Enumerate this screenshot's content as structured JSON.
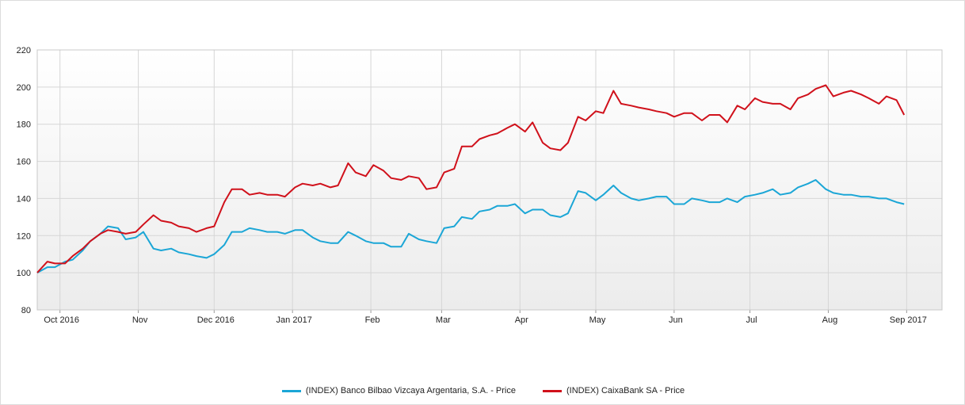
{
  "chart_data": {
    "type": "line",
    "title": "",
    "xlabel": "",
    "ylabel": "",
    "ylim": [
      80,
      220
    ],
    "y_ticks": [
      80,
      100,
      120,
      140,
      160,
      180,
      200,
      220
    ],
    "x_tick_labels": [
      "Oct 2016",
      "Nov",
      "Dec 2016",
      "Jan 2017",
      "Feb",
      "Mar",
      "Apr",
      "May",
      "Jun",
      "Jul",
      "Aug",
      "Sep 2017"
    ],
    "x_tick_dates": [
      "2016-10-01",
      "2016-11-01",
      "2016-12-01",
      "2017-01-01",
      "2017-02-01",
      "2017-03-01",
      "2017-04-01",
      "2017-05-01",
      "2017-06-01",
      "2017-07-01",
      "2017-08-01",
      "2017-09-01"
    ],
    "x_range": [
      "2016-09-22",
      "2017-09-15"
    ],
    "grid": true,
    "legend_position": "bottom",
    "series": [
      {
        "name": "(INDEX) Banco Bilbao Vizcaya Argentaria, S.A. - Price",
        "color": "#1ba6d6",
        "points": [
          [
            "2016-09-22",
            100
          ],
          [
            "2016-09-26",
            103
          ],
          [
            "2016-09-29",
            103
          ],
          [
            "2016-10-03",
            106
          ],
          [
            "2016-10-06",
            107
          ],
          [
            "2016-10-10",
            112
          ],
          [
            "2016-10-13",
            117
          ],
          [
            "2016-10-17",
            121
          ],
          [
            "2016-10-20",
            125
          ],
          [
            "2016-10-24",
            124
          ],
          [
            "2016-10-27",
            118
          ],
          [
            "2016-10-31",
            119
          ],
          [
            "2016-11-03",
            122
          ],
          [
            "2016-11-07",
            113
          ],
          [
            "2016-11-10",
            112
          ],
          [
            "2016-11-14",
            113
          ],
          [
            "2016-11-17",
            111
          ],
          [
            "2016-11-21",
            110
          ],
          [
            "2016-11-24",
            109
          ],
          [
            "2016-11-28",
            108
          ],
          [
            "2016-12-01",
            110
          ],
          [
            "2016-12-05",
            115
          ],
          [
            "2016-12-08",
            122
          ],
          [
            "2016-12-12",
            122
          ],
          [
            "2016-12-15",
            124
          ],
          [
            "2016-12-19",
            123
          ],
          [
            "2016-12-22",
            122
          ],
          [
            "2016-12-26",
            122
          ],
          [
            "2016-12-29",
            121
          ],
          [
            "2017-01-02",
            123
          ],
          [
            "2017-01-05",
            123
          ],
          [
            "2017-01-09",
            119
          ],
          [
            "2017-01-12",
            117
          ],
          [
            "2017-01-16",
            116
          ],
          [
            "2017-01-19",
            116
          ],
          [
            "2017-01-23",
            122
          ],
          [
            "2017-01-26",
            120
          ],
          [
            "2017-01-30",
            117
          ],
          [
            "2017-02-02",
            116
          ],
          [
            "2017-02-06",
            116
          ],
          [
            "2017-02-09",
            114
          ],
          [
            "2017-02-13",
            114
          ],
          [
            "2017-02-16",
            121
          ],
          [
            "2017-02-20",
            118
          ],
          [
            "2017-02-23",
            117
          ],
          [
            "2017-02-27",
            116
          ],
          [
            "2017-03-02",
            124
          ],
          [
            "2017-03-06",
            125
          ],
          [
            "2017-03-09",
            130
          ],
          [
            "2017-03-13",
            129
          ],
          [
            "2017-03-16",
            133
          ],
          [
            "2017-03-20",
            134
          ],
          [
            "2017-03-23",
            136
          ],
          [
            "2017-03-27",
            136
          ],
          [
            "2017-03-30",
            137
          ],
          [
            "2017-04-03",
            132
          ],
          [
            "2017-04-06",
            134
          ],
          [
            "2017-04-10",
            134
          ],
          [
            "2017-04-13",
            131
          ],
          [
            "2017-04-17",
            130
          ],
          [
            "2017-04-20",
            132
          ],
          [
            "2017-04-24",
            144
          ],
          [
            "2017-04-27",
            143
          ],
          [
            "2017-05-01",
            139
          ],
          [
            "2017-05-04",
            142
          ],
          [
            "2017-05-08",
            147
          ],
          [
            "2017-05-11",
            143
          ],
          [
            "2017-05-15",
            140
          ],
          [
            "2017-05-18",
            139
          ],
          [
            "2017-05-22",
            140
          ],
          [
            "2017-05-25",
            141
          ],
          [
            "2017-05-29",
            141
          ],
          [
            "2017-06-01",
            137
          ],
          [
            "2017-06-05",
            137
          ],
          [
            "2017-06-08",
            140
          ],
          [
            "2017-06-12",
            139
          ],
          [
            "2017-06-15",
            138
          ],
          [
            "2017-06-19",
            138
          ],
          [
            "2017-06-22",
            140
          ],
          [
            "2017-06-26",
            138
          ],
          [
            "2017-06-29",
            141
          ],
          [
            "2017-07-03",
            142
          ],
          [
            "2017-07-06",
            143
          ],
          [
            "2017-07-10",
            145
          ],
          [
            "2017-07-13",
            142
          ],
          [
            "2017-07-17",
            143
          ],
          [
            "2017-07-20",
            146
          ],
          [
            "2017-07-24",
            148
          ],
          [
            "2017-07-27",
            150
          ],
          [
            "2017-07-31",
            145
          ],
          [
            "2017-08-03",
            143
          ],
          [
            "2017-08-07",
            142
          ],
          [
            "2017-08-10",
            142
          ],
          [
            "2017-08-14",
            141
          ],
          [
            "2017-08-17",
            141
          ],
          [
            "2017-08-21",
            140
          ],
          [
            "2017-08-24",
            140
          ],
          [
            "2017-08-28",
            138
          ],
          [
            "2017-08-31",
            137
          ]
        ]
      },
      {
        "name": "(INDEX) CaixaBank SA - Price",
        "color": "#d0111b",
        "points": [
          [
            "2016-09-22",
            100
          ],
          [
            "2016-09-26",
            106
          ],
          [
            "2016-09-29",
            105
          ],
          [
            "2016-10-03",
            105
          ],
          [
            "2016-10-06",
            109
          ],
          [
            "2016-10-10",
            113
          ],
          [
            "2016-10-13",
            117
          ],
          [
            "2016-10-17",
            121
          ],
          [
            "2016-10-20",
            123
          ],
          [
            "2016-10-24",
            122
          ],
          [
            "2016-10-27",
            121
          ],
          [
            "2016-10-31",
            122
          ],
          [
            "2016-11-03",
            126
          ],
          [
            "2016-11-07",
            131
          ],
          [
            "2016-11-10",
            128
          ],
          [
            "2016-11-14",
            127
          ],
          [
            "2016-11-17",
            125
          ],
          [
            "2016-11-21",
            124
          ],
          [
            "2016-11-24",
            122
          ],
          [
            "2016-11-28",
            124
          ],
          [
            "2016-12-01",
            125
          ],
          [
            "2016-12-05",
            138
          ],
          [
            "2016-12-08",
            145
          ],
          [
            "2016-12-12",
            145
          ],
          [
            "2016-12-15",
            142
          ],
          [
            "2016-12-19",
            143
          ],
          [
            "2016-12-22",
            142
          ],
          [
            "2016-12-26",
            142
          ],
          [
            "2016-12-29",
            141
          ],
          [
            "2017-01-02",
            146
          ],
          [
            "2017-01-05",
            148
          ],
          [
            "2017-01-09",
            147
          ],
          [
            "2017-01-12",
            148
          ],
          [
            "2017-01-16",
            146
          ],
          [
            "2017-01-19",
            147
          ],
          [
            "2017-01-23",
            159
          ],
          [
            "2017-01-26",
            154
          ],
          [
            "2017-01-30",
            152
          ],
          [
            "2017-02-02",
            158
          ],
          [
            "2017-02-06",
            155
          ],
          [
            "2017-02-09",
            151
          ],
          [
            "2017-02-13",
            150
          ],
          [
            "2017-02-16",
            152
          ],
          [
            "2017-02-20",
            151
          ],
          [
            "2017-02-23",
            145
          ],
          [
            "2017-02-27",
            146
          ],
          [
            "2017-03-02",
            154
          ],
          [
            "2017-03-06",
            156
          ],
          [
            "2017-03-09",
            168
          ],
          [
            "2017-03-13",
            168
          ],
          [
            "2017-03-16",
            172
          ],
          [
            "2017-03-20",
            174
          ],
          [
            "2017-03-23",
            175
          ],
          [
            "2017-03-27",
            178
          ],
          [
            "2017-03-30",
            180
          ],
          [
            "2017-04-03",
            176
          ],
          [
            "2017-04-06",
            181
          ],
          [
            "2017-04-10",
            170
          ],
          [
            "2017-04-13",
            167
          ],
          [
            "2017-04-17",
            166
          ],
          [
            "2017-04-20",
            170
          ],
          [
            "2017-04-24",
            184
          ],
          [
            "2017-04-27",
            182
          ],
          [
            "2017-05-01",
            187
          ],
          [
            "2017-05-04",
            186
          ],
          [
            "2017-05-08",
            198
          ],
          [
            "2017-05-11",
            191
          ],
          [
            "2017-05-15",
            190
          ],
          [
            "2017-05-18",
            189
          ],
          [
            "2017-05-22",
            188
          ],
          [
            "2017-05-25",
            187
          ],
          [
            "2017-05-29",
            186
          ],
          [
            "2017-06-01",
            184
          ],
          [
            "2017-06-05",
            186
          ],
          [
            "2017-06-08",
            186
          ],
          [
            "2017-06-12",
            182
          ],
          [
            "2017-06-15",
            185
          ],
          [
            "2017-06-19",
            185
          ],
          [
            "2017-06-22",
            181
          ],
          [
            "2017-06-26",
            190
          ],
          [
            "2017-06-29",
            188
          ],
          [
            "2017-07-03",
            194
          ],
          [
            "2017-07-06",
            192
          ],
          [
            "2017-07-10",
            191
          ],
          [
            "2017-07-13",
            191
          ],
          [
            "2017-07-17",
            188
          ],
          [
            "2017-07-20",
            194
          ],
          [
            "2017-07-24",
            196
          ],
          [
            "2017-07-27",
            199
          ],
          [
            "2017-07-31",
            201
          ],
          [
            "2017-08-03",
            195
          ],
          [
            "2017-08-07",
            197
          ],
          [
            "2017-08-10",
            198
          ],
          [
            "2017-08-14",
            196
          ],
          [
            "2017-08-17",
            194
          ],
          [
            "2017-08-21",
            191
          ],
          [
            "2017-08-24",
            195
          ],
          [
            "2017-08-28",
            193
          ],
          [
            "2017-08-31",
            185
          ]
        ]
      }
    ]
  }
}
